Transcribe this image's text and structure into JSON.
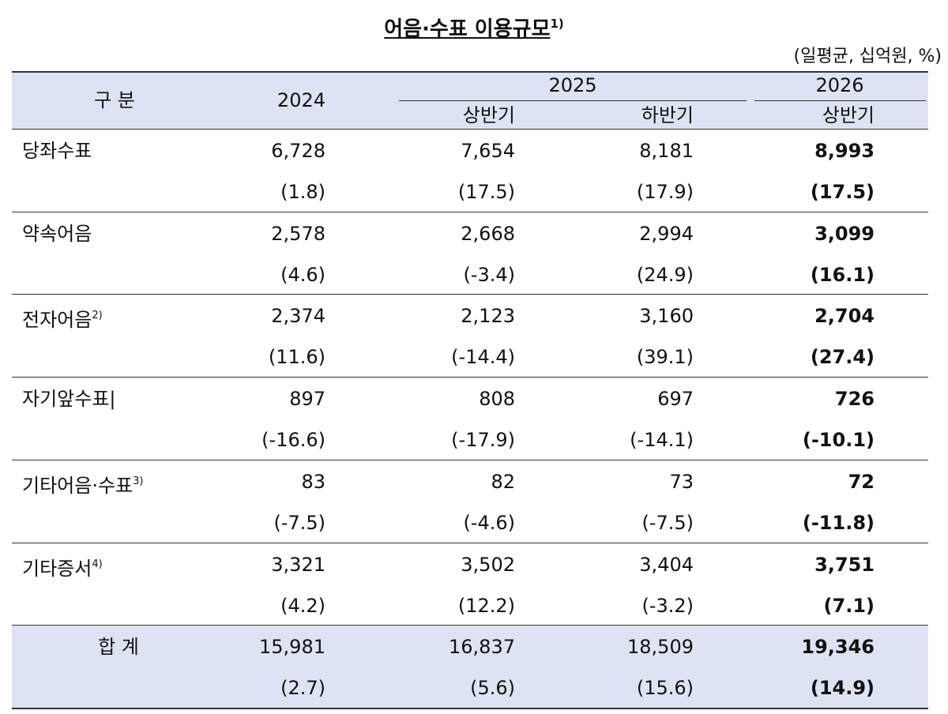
{
  "header": {
    "title": "어음·수표 이용규모",
    "title_note": "1)",
    "unit": "(일평균, 십억원, %)"
  },
  "table": {
    "columns": {
      "label": "구 분",
      "y2024": "2024",
      "y2025": "2025",
      "y2025_h1": "상반기",
      "y2025_h2": "하반기",
      "y2026": "2026",
      "y2026_h1": "상반기"
    },
    "rows": [
      {
        "label": "당좌수표",
        "values": [
          "6,728",
          "7,654",
          "8,181",
          "8,993"
        ],
        "changes": [
          "(1.8)",
          "(17.5)",
          "(17.9)",
          "(17.5)"
        ]
      },
      {
        "label": "약속어음",
        "values": [
          "2,578",
          "2,668",
          "2,994",
          "3,099"
        ],
        "changes": [
          "(4.6)",
          "(-3.4)",
          "(24.9)",
          "(16.1)"
        ]
      },
      {
        "label": "전자어음",
        "note": "2)",
        "values": [
          "2,374",
          "2,123",
          "3,160",
          "2,704"
        ],
        "changes": [
          "(11.6)",
          "(-14.4)",
          "(39.1)",
          "(27.4)"
        ]
      },
      {
        "label": "자기앞수표|",
        "values": [
          "897",
          "808",
          "697",
          "726"
        ],
        "changes": [
          "(-16.6)",
          "(-17.9)",
          "(-14.1)",
          "(-10.1)"
        ]
      },
      {
        "label": "기타어음·수표",
        "note": "3)",
        "values": [
          "83",
          "82",
          "73",
          "72"
        ],
        "changes": [
          "(-7.5)",
          "(-4.6)",
          "(-7.5)",
          "(-11.8)"
        ]
      },
      {
        "label": "기타증서",
        "note": "4)",
        "values": [
          "3,321",
          "3,502",
          "3,404",
          "3,751"
        ],
        "changes": [
          "(4.2)",
          "(12.2)",
          "(-3.2)",
          "(7.1)"
        ]
      },
      {
        "label": "합 계",
        "total": true,
        "values": [
          "15,981",
          "16,837",
          "18,509",
          "19,346"
        ],
        "changes": [
          "(2.7)",
          "(5.6)",
          "(15.6)",
          "(14.9)"
        ]
      }
    ]
  }
}
